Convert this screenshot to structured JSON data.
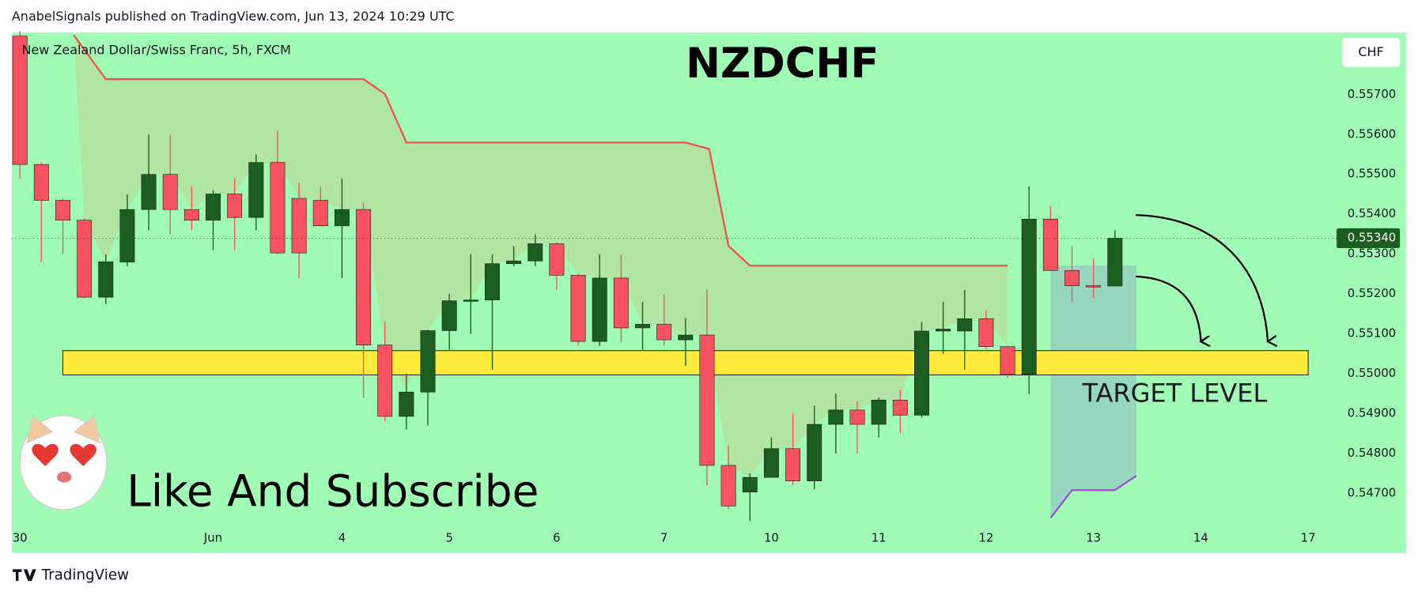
{
  "header": "AnabelSignals published on TradingView.com, Jun 13, 2024 10:29 UTC",
  "footer": "TradingView",
  "chart_data": {
    "type": "candlestick",
    "title": "NZDCHF",
    "subtitle": "New Zealand Dollar/Swiss Franc, 5h, FXCM",
    "currency": "CHF",
    "annotations": [
      "TARGET LEVEL",
      "Like And Subscribe"
    ],
    "up_color": "#1b5e20",
    "down_color": "#f7525f",
    "background": "#a0fcb4",
    "x": [
      0,
      1,
      2,
      3,
      4,
      5,
      6,
      7,
      8,
      9,
      10,
      11,
      12,
      13,
      14,
      15,
      16,
      17,
      18,
      19,
      20,
      21,
      22,
      23,
      24,
      25,
      26,
      27,
      28,
      29,
      30,
      31,
      32,
      33,
      34,
      35,
      36,
      37,
      38,
      39,
      40,
      41,
      42,
      43,
      44,
      45,
      46,
      47,
      48,
      49,
      50,
      51
    ],
    "open": [
      0.55847,
      0.55525,
      0.55435,
      0.55385,
      0.55192,
      0.5528,
      0.55412,
      0.555,
      0.55412,
      0.55385,
      0.55451,
      0.55392,
      0.5553,
      0.5544,
      0.55435,
      0.55371,
      0.55412,
      0.55072,
      0.54893,
      0.54954,
      0.55108,
      0.55183,
      0.55185,
      0.55276,
      0.55283,
      0.55326,
      0.55247,
      0.55081,
      0.5524,
      0.55115,
      0.55124,
      0.55085,
      0.55097,
      0.5477,
      0.54703,
      0.5474,
      0.54812,
      0.54731,
      0.54873,
      0.54909,
      0.54873,
      0.54934,
      0.54896,
      0.55107,
      0.55107,
      0.55138,
      0.55068,
      0.54998,
      0.55388,
      0.55259,
      0.55221,
      0.5522
    ],
    "high": [
      0.5586,
      0.5553,
      0.5544,
      0.5539,
      0.553,
      0.5545,
      0.556,
      0.556,
      0.5547,
      0.5546,
      0.5549,
      0.5555,
      0.5561,
      0.5548,
      0.5547,
      0.5549,
      0.5543,
      0.5513,
      0.55,
      0.5511,
      0.552,
      0.553,
      0.553,
      0.5532,
      0.5535,
      0.5533,
      0.5525,
      0.553,
      0.553,
      0.5518,
      0.552,
      0.5514,
      0.5521,
      0.5482,
      0.5475,
      0.5484,
      0.549,
      0.5492,
      0.5495,
      0.5493,
      0.5494,
      0.5496,
      0.5513,
      0.5518,
      0.5521,
      0.5516,
      0.5507,
      0.5547,
      0.5542,
      0.5532,
      0.5529,
      0.5536
    ],
    "low": [
      0.55489,
      0.5528,
      0.553,
      0.5519,
      0.55175,
      0.5527,
      0.5536,
      0.5535,
      0.5536,
      0.5531,
      0.5531,
      0.5536,
      0.553,
      0.5524,
      0.5537,
      0.5524,
      0.5494,
      0.5488,
      0.5486,
      0.5487,
      0.5506,
      0.551,
      0.5501,
      0.5527,
      0.5527,
      0.5521,
      0.5507,
      0.5507,
      0.5508,
      0.5506,
      0.5507,
      0.5502,
      0.5472,
      0.5466,
      0.5463,
      0.5474,
      0.5472,
      0.5471,
      0.548,
      0.548,
      0.5484,
      0.5485,
      0.5489,
      0.5505,
      0.5501,
      0.5506,
      0.5499,
      0.5495,
      0.5526,
      0.5518,
      0.5519,
      0.5523
    ],
    "close": [
      0.55525,
      0.55435,
      0.55385,
      0.55192,
      0.55281,
      0.55412,
      0.555,
      0.55412,
      0.55385,
      0.55451,
      0.55392,
      0.5553,
      0.55303,
      0.55303,
      0.55371,
      0.55412,
      0.55072,
      0.54893,
      0.54954,
      0.55108,
      0.55183,
      0.55185,
      0.55276,
      0.55283,
      0.55326,
      0.55247,
      0.55081,
      0.5524,
      0.55115,
      0.55124,
      0.55085,
      0.55097,
      0.5477,
      0.54668,
      0.5474,
      0.54812,
      0.54731,
      0.54873,
      0.54909,
      0.54873,
      0.54934,
      0.54896,
      0.55107,
      0.55112,
      0.55138,
      0.55068,
      0.54998,
      0.55388,
      0.55259,
      0.55221,
      0.5522,
      0.5534
    ],
    "resistance_line": {
      "color": "#f05050",
      "x": [
        2.5,
        4,
        16,
        17,
        18,
        31,
        32.1,
        33,
        34,
        46
      ],
      "y": [
        0.5585,
        0.55739,
        0.55739,
        0.55702,
        0.5558,
        0.5558,
        0.55564,
        0.55321,
        0.55271,
        0.55271
      ]
    },
    "support_line": {
      "color": "#9c4fd6",
      "x": [
        48,
        49,
        51,
        52
      ],
      "y": [
        0.54638,
        0.54708,
        0.54708,
        0.54744
      ]
    },
    "zone": {
      "color": "#ffeb3b",
      "x": [
        2,
        60
      ],
      "y": [
        0.54997,
        0.55058
      ]
    },
    "last_price": {
      "value": 0.5534,
      "label": "0.55340"
    },
    "xlim": [
      -0.38,
      60.65
    ],
    "ylim": [
      0.54616,
      0.55856
    ],
    "xticks": [
      {
        "value": 0,
        "label": "30"
      },
      {
        "value": 9,
        "label": "Jun"
      },
      {
        "value": 15,
        "label": "4"
      },
      {
        "value": 20,
        "label": "5"
      },
      {
        "value": 25,
        "label": "6"
      },
      {
        "value": 30,
        "label": "7"
      },
      {
        "value": 35,
        "label": "10"
      },
      {
        "value": 40,
        "label": "11"
      },
      {
        "value": 45,
        "label": "12"
      },
      {
        "value": 50,
        "label": "13"
      },
      {
        "value": 55,
        "label": "14"
      },
      {
        "value": 60,
        "label": "17"
      }
    ],
    "yticks": [
      {
        "value": 0.547,
        "label": "0.54700"
      },
      {
        "value": 0.548,
        "label": "0.54800"
      },
      {
        "value": 0.549,
        "label": "0.54900"
      },
      {
        "value": 0.55,
        "label": "0.55000"
      },
      {
        "value": 0.551,
        "label": "0.55100"
      },
      {
        "value": 0.552,
        "label": "0.55200"
      },
      {
        "value": 0.553,
        "label": "0.55300"
      },
      {
        "value": 0.554,
        "label": "0.55400"
      },
      {
        "value": 0.555,
        "label": "0.55500"
      },
      {
        "value": 0.556,
        "label": "0.55600"
      },
      {
        "value": 0.557,
        "label": "0.55700"
      }
    ]
  }
}
